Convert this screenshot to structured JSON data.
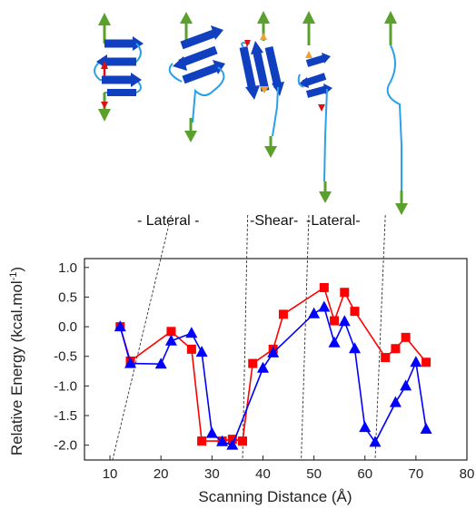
{
  "chart_data": {
    "type": "line",
    "xlabel": "Scanning Distance (Å)",
    "ylabel_main": "Relative Energy (kcal.mol",
    "ylabel_sup": "-1",
    "ylabel_close": ")",
    "xlim": [
      5,
      80
    ],
    "ylim": [
      -2.25,
      1.15
    ],
    "xticks": [
      10,
      20,
      30,
      40,
      50,
      60,
      70,
      80
    ],
    "yticks": [
      -2.0,
      -1.5,
      -1.0,
      -0.5,
      0.0,
      0.5,
      1.0
    ],
    "ytick_labels": [
      "-2.0",
      "-1.5",
      "-1.0",
      "-0.5",
      "0.0",
      "0.5",
      "1.0"
    ],
    "grid": false,
    "region_labels": [
      "- Lateral -",
      "-Shear-",
      "-Lateral-"
    ],
    "series": [
      {
        "marker": "square",
        "color": "#ff0000",
        "x": [
          12,
          14,
          22,
          26,
          28,
          32,
          34,
          36,
          38,
          42,
          44,
          52,
          54,
          56,
          58,
          64,
          66,
          68,
          72
        ],
        "y": [
          0.0,
          -0.58,
          -0.08,
          -0.38,
          -1.93,
          -1.93,
          -1.9,
          -1.93,
          -0.62,
          -0.38,
          0.21,
          0.66,
          0.1,
          0.58,
          0.26,
          -0.52,
          -0.37,
          -0.18,
          -0.6
        ]
      },
      {
        "marker": "triangle",
        "color": "#0000ff",
        "x": [
          12,
          14,
          20,
          22,
          26,
          28,
          30,
          32,
          34,
          40,
          42,
          50,
          52,
          54,
          56,
          58,
          60,
          62,
          66,
          68,
          70,
          72
        ],
        "y": [
          0.0,
          -0.62,
          -0.63,
          -0.24,
          -0.11,
          -0.43,
          -1.8,
          -1.94,
          -2.0,
          -0.7,
          -0.44,
          0.22,
          0.33,
          -0.27,
          0.09,
          -0.37,
          -1.7,
          -1.95,
          -1.28,
          -1.0,
          -0.6,
          -1.73
        ]
      }
    ],
    "dashed_boundaries": [
      {
        "top": 22,
        "bottom": 10.5
      },
      {
        "top": 37,
        "bottom": 36
      },
      {
        "top": 49,
        "bottom": 47.5
      },
      {
        "top": 64,
        "bottom": 62
      }
    ]
  }
}
